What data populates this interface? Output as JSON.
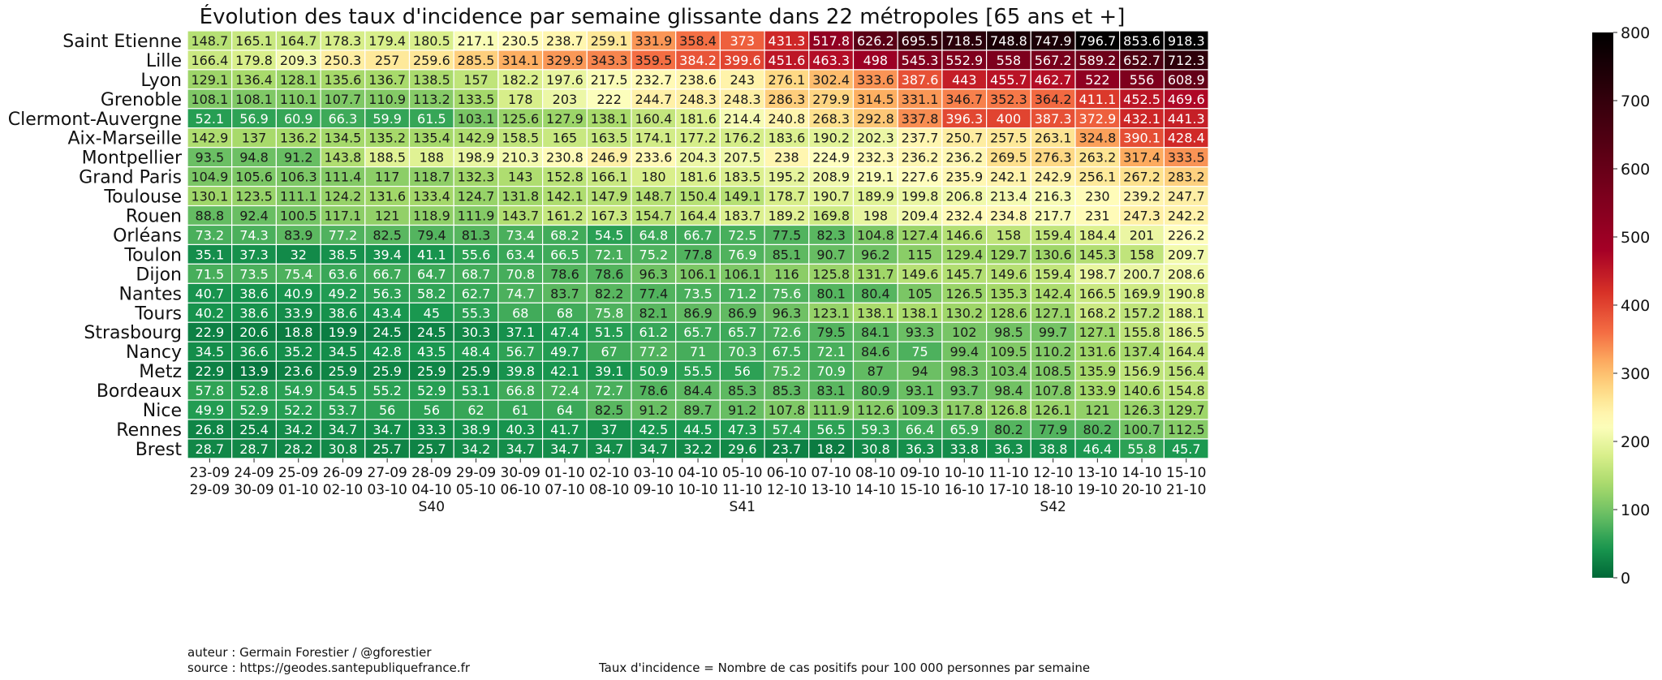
{
  "chart_data": {
    "type": "heatmap",
    "title": "Évolution des taux d'incidence par semaine glissante dans 22 métropoles [65 ans et +]",
    "colorscale": "RdYlGn_r",
    "vmin": 0,
    "vmax": 800,
    "colorbar_ticks": [
      0,
      100,
      200,
      300,
      400,
      500,
      600,
      700,
      800
    ],
    "columns": [
      {
        "start": "23-09",
        "end": "29-09",
        "week": ""
      },
      {
        "start": "24-09",
        "end": "30-09",
        "week": ""
      },
      {
        "start": "25-09",
        "end": "01-10",
        "week": ""
      },
      {
        "start": "26-09",
        "end": "02-10",
        "week": ""
      },
      {
        "start": "27-09",
        "end": "03-10",
        "week": ""
      },
      {
        "start": "28-09",
        "end": "04-10",
        "week": "S40"
      },
      {
        "start": "29-09",
        "end": "05-10",
        "week": ""
      },
      {
        "start": "30-09",
        "end": "06-10",
        "week": ""
      },
      {
        "start": "01-10",
        "end": "07-10",
        "week": ""
      },
      {
        "start": "02-10",
        "end": "08-10",
        "week": ""
      },
      {
        "start": "03-10",
        "end": "09-10",
        "week": ""
      },
      {
        "start": "04-10",
        "end": "10-10",
        "week": ""
      },
      {
        "start": "05-10",
        "end": "11-10",
        "week": "S41"
      },
      {
        "start": "06-10",
        "end": "12-10",
        "week": ""
      },
      {
        "start": "07-10",
        "end": "13-10",
        "week": ""
      },
      {
        "start": "08-10",
        "end": "14-10",
        "week": ""
      },
      {
        "start": "09-10",
        "end": "15-10",
        "week": ""
      },
      {
        "start": "10-10",
        "end": "16-10",
        "week": ""
      },
      {
        "start": "11-10",
        "end": "17-10",
        "week": ""
      },
      {
        "start": "12-10",
        "end": "18-10",
        "week": "S42"
      },
      {
        "start": "13-10",
        "end": "19-10",
        "week": ""
      },
      {
        "start": "14-10",
        "end": "20-10",
        "week": ""
      },
      {
        "start": "15-10",
        "end": "21-10",
        "week": ""
      }
    ],
    "rows": [
      {
        "name": "Saint Etienne",
        "values": [
          "148.7",
          "165.1",
          "164.7",
          "178.3",
          "179.4",
          "180.5",
          "217.1",
          "230.5",
          "238.7",
          "259.1",
          "331.9",
          "358.4",
          "373",
          "431.3",
          "517.8",
          "626.2",
          "695.5",
          "718.5",
          "748.8",
          "747.9",
          "796.7",
          "853.6",
          "918.3"
        ]
      },
      {
        "name": "Lille",
        "values": [
          "166.4",
          "179.8",
          "209.3",
          "250.3",
          "257",
          "259.6",
          "285.5",
          "314.1",
          "329.9",
          "343.3",
          "359.5",
          "384.2",
          "399.6",
          "451.6",
          "463.3",
          "498",
          "545.3",
          "552.9",
          "558",
          "567.2",
          "589.2",
          "652.7",
          "712.3"
        ]
      },
      {
        "name": "Lyon",
        "values": [
          "129.1",
          "136.4",
          "128.1",
          "135.6",
          "136.7",
          "138.5",
          "157",
          "182.2",
          "197.6",
          "217.5",
          "232.7",
          "238.6",
          "243",
          "276.1",
          "302.4",
          "333.6",
          "387.6",
          "443",
          "455.7",
          "462.7",
          "522",
          "556",
          "608.9"
        ]
      },
      {
        "name": "Grenoble",
        "values": [
          "108.1",
          "108.1",
          "110.1",
          "107.7",
          "110.9",
          "113.2",
          "133.5",
          "178",
          "203",
          "222",
          "244.7",
          "248.3",
          "248.3",
          "286.3",
          "279.9",
          "314.5",
          "331.1",
          "346.7",
          "352.3",
          "364.2",
          "411.1",
          "452.5",
          "469.6"
        ]
      },
      {
        "name": "Clermont-Auvergne",
        "values": [
          "52.1",
          "56.9",
          "60.9",
          "66.3",
          "59.9",
          "61.5",
          "103.1",
          "125.6",
          "127.9",
          "138.1",
          "160.4",
          "181.6",
          "214.4",
          "240.8",
          "268.3",
          "292.8",
          "337.8",
          "396.3",
          "400",
          "387.3",
          "372.9",
          "432.1",
          "441.3"
        ]
      },
      {
        "name": "Aix-Marseille",
        "values": [
          "142.9",
          "137",
          "136.2",
          "134.5",
          "135.2",
          "135.4",
          "142.9",
          "158.5",
          "165",
          "163.5",
          "174.1",
          "177.2",
          "176.2",
          "183.6",
          "190.2",
          "202.3",
          "237.7",
          "250.7",
          "257.5",
          "263.1",
          "324.8",
          "390.1",
          "428.4"
        ]
      },
      {
        "name": "Montpellier",
        "values": [
          "93.5",
          "94.8",
          "91.2",
          "143.8",
          "188.5",
          "188",
          "198.9",
          "210.3",
          "230.8",
          "246.9",
          "233.6",
          "204.3",
          "207.5",
          "238",
          "224.9",
          "232.3",
          "236.2",
          "236.2",
          "269.5",
          "276.3",
          "263.2",
          "317.4",
          "333.5"
        ]
      },
      {
        "name": "Grand Paris",
        "values": [
          "104.9",
          "105.6",
          "106.3",
          "111.4",
          "117",
          "118.7",
          "132.3",
          "143",
          "152.8",
          "166.1",
          "180",
          "181.6",
          "183.5",
          "195.2",
          "208.9",
          "219.1",
          "227.6",
          "235.9",
          "242.1",
          "242.9",
          "256.1",
          "267.2",
          "283.2"
        ]
      },
      {
        "name": "Toulouse",
        "values": [
          "130.1",
          "123.5",
          "111.1",
          "124.2",
          "131.6",
          "133.4",
          "124.7",
          "131.8",
          "142.1",
          "147.9",
          "148.7",
          "150.4",
          "149.1",
          "178.7",
          "190.7",
          "189.9",
          "199.8",
          "206.8",
          "213.4",
          "216.3",
          "230",
          "239.2",
          "247.7"
        ]
      },
      {
        "name": "Rouen",
        "values": [
          "88.8",
          "92.4",
          "100.5",
          "117.1",
          "121",
          "118.9",
          "111.9",
          "143.7",
          "161.2",
          "167.3",
          "154.7",
          "164.4",
          "183.7",
          "189.2",
          "169.8",
          "198",
          "209.4",
          "232.4",
          "234.8",
          "217.7",
          "231",
          "247.3",
          "242.2"
        ]
      },
      {
        "name": "Orléans",
        "values": [
          "73.2",
          "74.3",
          "83.9",
          "77.2",
          "82.5",
          "79.4",
          "81.3",
          "73.4",
          "68.2",
          "54.5",
          "64.8",
          "66.7",
          "72.5",
          "77.5",
          "82.3",
          "104.8",
          "127.4",
          "146.6",
          "158",
          "159.4",
          "184.4",
          "201",
          "226.2"
        ]
      },
      {
        "name": "Toulon",
        "values": [
          "35.1",
          "37.3",
          "32",
          "38.5",
          "39.4",
          "41.1",
          "55.6",
          "63.4",
          "66.5",
          "72.1",
          "75.2",
          "77.8",
          "76.9",
          "85.1",
          "90.7",
          "96.2",
          "115",
          "129.4",
          "129.7",
          "130.6",
          "145.3",
          "158",
          "209.7"
        ]
      },
      {
        "name": "Dijon",
        "values": [
          "71.5",
          "73.5",
          "75.4",
          "63.6",
          "66.7",
          "64.7",
          "68.7",
          "70.8",
          "78.6",
          "78.6",
          "96.3",
          "106.1",
          "106.1",
          "116",
          "125.8",
          "131.7",
          "149.6",
          "145.7",
          "149.6",
          "159.4",
          "198.7",
          "200.7",
          "208.6"
        ]
      },
      {
        "name": "Nantes",
        "values": [
          "40.7",
          "38.6",
          "40.9",
          "49.2",
          "56.3",
          "58.2",
          "62.7",
          "74.7",
          "83.7",
          "82.2",
          "77.4",
          "73.5",
          "71.2",
          "75.6",
          "80.1",
          "80.4",
          "105",
          "126.5",
          "135.3",
          "142.4",
          "166.5",
          "169.9",
          "190.8"
        ]
      },
      {
        "name": "Tours",
        "values": [
          "40.2",
          "38.6",
          "33.9",
          "38.6",
          "43.4",
          "45",
          "55.3",
          "68",
          "68",
          "75.8",
          "82.1",
          "86.9",
          "86.9",
          "96.3",
          "123.1",
          "138.1",
          "138.1",
          "130.2",
          "128.6",
          "127.1",
          "168.2",
          "157.2",
          "188.1"
        ]
      },
      {
        "name": "Strasbourg",
        "values": [
          "22.9",
          "20.6",
          "18.8",
          "19.9",
          "24.5",
          "24.5",
          "30.3",
          "37.1",
          "47.4",
          "51.5",
          "61.2",
          "65.7",
          "65.7",
          "72.6",
          "79.5",
          "84.1",
          "93.3",
          "102",
          "98.5",
          "99.7",
          "127.1",
          "155.8",
          "186.5"
        ]
      },
      {
        "name": "Nancy",
        "values": [
          "34.5",
          "36.6",
          "35.2",
          "34.5",
          "42.8",
          "43.5",
          "48.4",
          "56.7",
          "49.7",
          "67",
          "77.2",
          "71",
          "70.3",
          "67.5",
          "72.1",
          "84.6",
          "75",
          "99.4",
          "109.5",
          "110.2",
          "131.6",
          "137.4",
          "164.4"
        ]
      },
      {
        "name": "Metz",
        "values": [
          "22.9",
          "13.9",
          "23.6",
          "25.9",
          "25.9",
          "25.9",
          "25.9",
          "39.8",
          "42.1",
          "39.1",
          "50.9",
          "55.5",
          "56",
          "75.2",
          "70.9",
          "87",
          "94",
          "98.3",
          "103.4",
          "108.5",
          "135.9",
          "156.9",
          "156.4"
        ]
      },
      {
        "name": "Bordeaux",
        "values": [
          "57.8",
          "52.8",
          "54.9",
          "54.5",
          "55.2",
          "52.9",
          "53.1",
          "66.8",
          "72.4",
          "72.7",
          "78.6",
          "84.4",
          "85.3",
          "85.3",
          "83.1",
          "80.9",
          "93.1",
          "93.7",
          "98.4",
          "107.8",
          "133.9",
          "140.6",
          "154.8"
        ]
      },
      {
        "name": "Nice",
        "values": [
          "49.9",
          "52.9",
          "52.2",
          "53.7",
          "56",
          "56",
          "62",
          "61",
          "64",
          "82.5",
          "91.2",
          "89.7",
          "91.2",
          "107.8",
          "111.9",
          "112.6",
          "109.3",
          "117.8",
          "126.8",
          "126.1",
          "121",
          "126.3",
          "129.7"
        ]
      },
      {
        "name": "Rennes",
        "values": [
          "26.8",
          "25.4",
          "34.2",
          "34.7",
          "34.7",
          "33.3",
          "38.9",
          "40.3",
          "41.7",
          "37",
          "42.5",
          "44.5",
          "47.3",
          "57.4",
          "56.5",
          "59.3",
          "66.4",
          "65.9",
          "80.2",
          "77.9",
          "80.2",
          "100.7",
          "112.5"
        ]
      },
      {
        "name": "Brest",
        "values": [
          "28.7",
          "28.7",
          "28.2",
          "30.8",
          "25.7",
          "25.7",
          "34.2",
          "34.7",
          "34.7",
          "34.7",
          "34.7",
          "32.2",
          "29.6",
          "23.7",
          "18.2",
          "30.8",
          "36.3",
          "33.8",
          "36.3",
          "38.8",
          "46.4",
          "55.8",
          "45.7"
        ]
      }
    ]
  },
  "footer": {
    "author": "auteur : Germain Forestier / @gforestier",
    "source": "source : https://geodes.santepubliquefrance.fr",
    "definition": "Taux d'incidence = Nombre de cas positifs pour 100 000 personnes par semaine"
  }
}
